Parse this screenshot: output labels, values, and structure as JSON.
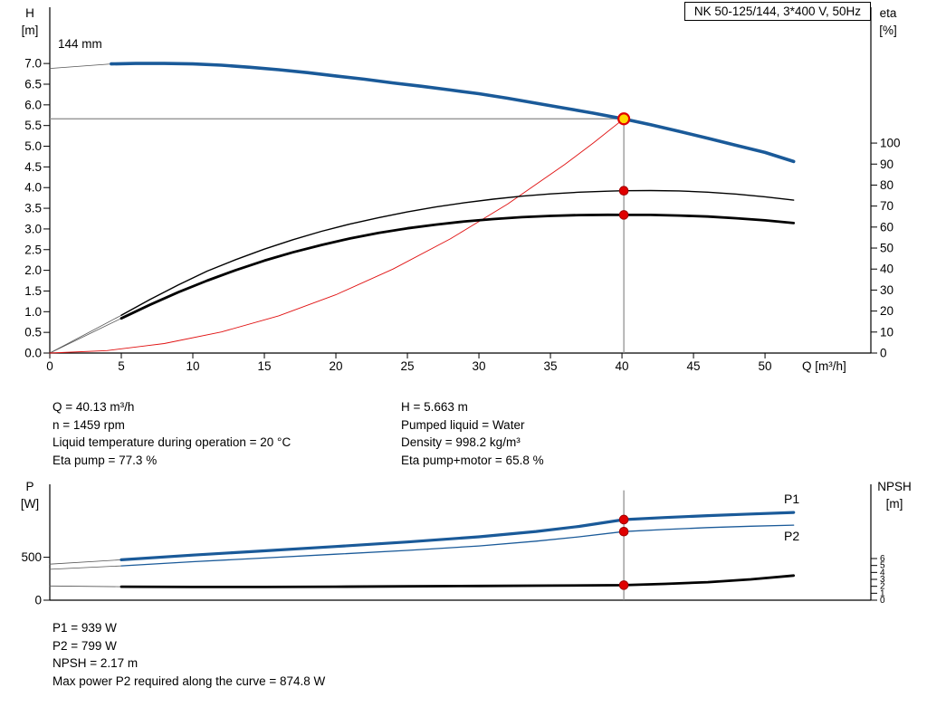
{
  "title_box": "NK 50-125/144, 3*400 V, 50Hz",
  "duty_text": {
    "left": [
      "Q = 40.13 m³/h",
      "n = 1459 rpm",
      "Liquid temperature during operation = 20 °C",
      "Eta pump = 77.3 %"
    ],
    "right": [
      "H = 5.663 m",
      "Pumped liquid = Water",
      "Density = 998.2 kg/m³",
      "Eta pump+motor = 65.8 %"
    ]
  },
  "power_text": [
    "P1 = 939 W",
    "P2 = 799 W",
    "NPSH = 2.17 m",
    "Max power P2 required along the curve = 874.8 W"
  ],
  "colors": {
    "curve_blue": "#1a5a99",
    "curve_black": "#000000",
    "system_red": "#e01010",
    "marker_red": "#e00000",
    "duty_yellow": "#ffd700",
    "ref_gray": "#8a8a8a",
    "thin_gray": "#555555"
  },
  "chart_data": [
    {
      "type": "line",
      "title": "NK 50-125/144, 3*400 V, 50Hz",
      "annotation": "144 mm",
      "x_axis": {
        "label": "Q [m³/h]",
        "min": 0,
        "max": 57.4,
        "ticks": [
          "0",
          "5",
          "10",
          "15",
          "20",
          "25",
          "30",
          "35",
          "40",
          "45",
          "50"
        ]
      },
      "y_left": {
        "label": [
          "H",
          "[m]"
        ],
        "min": 0,
        "max": 8.36,
        "ticks": [
          "0.0",
          "0.5",
          "1.0",
          "1.5",
          "2.0",
          "2.5",
          "3.0",
          "3.5",
          "4.0",
          "4.5",
          "5.0",
          "5.5",
          "6.0",
          "6.5",
          "7.0"
        ]
      },
      "y_right": {
        "label": [
          "eta",
          "[%]"
        ],
        "min": 0,
        "max": 164.7,
        "ticks": [
          "0",
          "10",
          "20",
          "30",
          "40",
          "50",
          "60",
          "70",
          "80",
          "90",
          "100"
        ]
      },
      "ref_lines": [
        {
          "name": "head-ref-line",
          "type": "h",
          "axis": "left",
          "v": 5.663,
          "from": 0,
          "to": 40.13
        },
        {
          "name": "flow-ref-line",
          "type": "v",
          "axis": "left",
          "q": 40.13,
          "from": 0,
          "to": 5.663
        }
      ],
      "series": [
        {
          "name": "h-curve-extension",
          "axis": "left",
          "color": "#555555",
          "width": 0.8,
          "points": [
            [
              0,
              6.88
            ],
            [
              4.3,
              6.99
            ]
          ]
        },
        {
          "name": "eta-pump-extension",
          "axis": "right",
          "color": "#555555",
          "width": 0.8,
          "points": [
            [
              0,
              0
            ],
            [
              5,
              18
            ]
          ]
        },
        {
          "name": "eta-motor-extension",
          "axis": "right",
          "color": "#555555",
          "width": 0.8,
          "points": [
            [
              0,
              0
            ],
            [
              5,
              16.5
            ]
          ]
        },
        {
          "name": "system-curve",
          "axis": "left",
          "color": "#e01010",
          "width": 0.9,
          "points": [
            [
              0,
              0
            ],
            [
              4,
              0.06
            ],
            [
              8,
              0.23
            ],
            [
              12,
              0.51
            ],
            [
              16,
              0.9
            ],
            [
              20,
              1.41
            ],
            [
              24,
              2.03
            ],
            [
              28,
              2.76
            ],
            [
              32,
              3.6
            ],
            [
              36,
              4.56
            ],
            [
              38,
              5.08
            ],
            [
              40.13,
              5.663
            ]
          ]
        },
        {
          "name": "eta-pump-curve",
          "axis": "right",
          "color": "#000000",
          "width": 1.4,
          "points": [
            [
              5,
              18
            ],
            [
              7,
              25.5
            ],
            [
              9,
              32.5
            ],
            [
              11,
              39
            ],
            [
              13,
              44.5
            ],
            [
              15,
              49.5
            ],
            [
              17,
              54
            ],
            [
              19,
              58
            ],
            [
              21,
              61.5
            ],
            [
              23,
              64.5
            ],
            [
              25,
              67.2
            ],
            [
              27,
              69.6
            ],
            [
              29,
              71.6
            ],
            [
              31,
              73.3
            ],
            [
              33,
              74.7
            ],
            [
              35,
              75.8
            ],
            [
              37,
              76.6
            ],
            [
              39,
              77.1
            ],
            [
              40.13,
              77.3
            ],
            [
              42,
              77.4
            ],
            [
              44,
              77.2
            ],
            [
              46,
              76.6
            ],
            [
              48,
              75.7
            ],
            [
              50,
              74.4
            ],
            [
              52,
              72.8
            ]
          ]
        },
        {
          "name": "eta-pump-motor-curve",
          "axis": "right",
          "color": "#000000",
          "width": 2.8,
          "points": [
            [
              5,
              16.5
            ],
            [
              7,
              23
            ],
            [
              9,
              29
            ],
            [
              11,
              34.5
            ],
            [
              13,
              39.5
            ],
            [
              15,
              44
            ],
            [
              17,
              48
            ],
            [
              19,
              51.5
            ],
            [
              21,
              54.6
            ],
            [
              23,
              57.2
            ],
            [
              25,
              59.4
            ],
            [
              27,
              61.2
            ],
            [
              29,
              62.7
            ],
            [
              31,
              63.8
            ],
            [
              33,
              64.7
            ],
            [
              35,
              65.3
            ],
            [
              37,
              65.7
            ],
            [
              39,
              65.85
            ],
            [
              40.13,
              65.8
            ],
            [
              42,
              65.8
            ],
            [
              44,
              65.5
            ],
            [
              46,
              65
            ],
            [
              48,
              64.2
            ],
            [
              50,
              63.2
            ],
            [
              52,
              61.9
            ]
          ]
        },
        {
          "name": "h-curve",
          "axis": "left",
          "color": "#1a5a99",
          "width": 3.6,
          "points": [
            [
              4.3,
              6.99
            ],
            [
              6,
              7.0
            ],
            [
              8,
              7.0
            ],
            [
              10,
              6.99
            ],
            [
              12,
              6.96
            ],
            [
              14,
              6.91
            ],
            [
              16,
              6.85
            ],
            [
              18,
              6.78
            ],
            [
              20,
              6.7
            ],
            [
              22,
              6.62
            ],
            [
              24,
              6.53
            ],
            [
              26,
              6.45
            ],
            [
              28,
              6.36
            ],
            [
              30,
              6.27
            ],
            [
              32,
              6.16
            ],
            [
              34,
              6.04
            ],
            [
              36,
              5.92
            ],
            [
              38,
              5.8
            ],
            [
              40.13,
              5.66
            ],
            [
              42,
              5.52
            ],
            [
              44,
              5.36
            ],
            [
              46,
              5.19
            ],
            [
              48,
              5.02
            ],
            [
              50,
              4.85
            ],
            [
              52,
              4.63
            ]
          ]
        }
      ],
      "markers": [
        {
          "name": "eta-pump-point",
          "axis": "right",
          "q": 40.13,
          "v": 77.3,
          "r": 4.8,
          "fill": "#e00000",
          "stroke": "#a00000",
          "sw": 1
        },
        {
          "name": "eta-motor-point",
          "axis": "right",
          "q": 40.13,
          "v": 65.8,
          "r": 4.8,
          "fill": "#e00000",
          "stroke": "#a00000",
          "sw": 1
        },
        {
          "name": "duty-point",
          "axis": "left",
          "q": 40.13,
          "v": 5.663,
          "r": 6,
          "fill": "#ffd700",
          "stroke": "#e00000",
          "sw": 2.2
        }
      ],
      "labels": []
    },
    {
      "type": "line",
      "x_axis": {
        "label": "",
        "min": 0,
        "max": 57.4,
        "ticks": []
      },
      "y_left": {
        "label": [
          "P",
          "[W]"
        ],
        "min": 0,
        "max": 1350,
        "ticks": [
          "0",
          "500"
        ]
      },
      "y_right": {
        "label": [
          "NPSH",
          "[m]"
        ],
        "min": 0,
        "max": 16.7,
        "ticks": [
          "0",
          "1",
          "2",
          "3",
          "4",
          "5",
          "6"
        ]
      },
      "ref_lines": [
        {
          "name": "flow-ref-line-power",
          "type": "v",
          "axis": "left",
          "q": 40.13,
          "from": 0,
          "to": 1280
        }
      ],
      "series": [
        {
          "name": "p1-extension",
          "axis": "left",
          "color": "#555555",
          "width": 0.8,
          "points": [
            [
              0,
              420
            ],
            [
              5,
              470
            ]
          ]
        },
        {
          "name": "p2-extension",
          "axis": "left",
          "color": "#555555",
          "width": 0.8,
          "points": [
            [
              0,
              360
            ],
            [
              5,
              400
            ]
          ]
        },
        {
          "name": "npsh-extension",
          "axis": "right",
          "color": "#555555",
          "width": 0.8,
          "points": [
            [
              0,
              2.05
            ],
            [
              5,
              1.95
            ]
          ]
        },
        {
          "name": "p1-curve",
          "axis": "left",
          "color": "#1a5a99",
          "width": 3.2,
          "points": [
            [
              5,
              470
            ],
            [
              10,
              525
            ],
            [
              15,
              575
            ],
            [
              20,
              625
            ],
            [
              25,
              678
            ],
            [
              30,
              738
            ],
            [
              34,
              800
            ],
            [
              37,
              860
            ],
            [
              40.13,
              939
            ],
            [
              43,
              963
            ],
            [
              46,
              985
            ],
            [
              49,
              1004
            ],
            [
              52,
              1022
            ]
          ]
        },
        {
          "name": "p2-curve",
          "axis": "left",
          "color": "#1a5a99",
          "width": 1.3,
          "points": [
            [
              5,
              400
            ],
            [
              10,
              448
            ],
            [
              15,
              492
            ],
            [
              20,
              536
            ],
            [
              25,
              580
            ],
            [
              30,
              632
            ],
            [
              34,
              688
            ],
            [
              37,
              738
            ],
            [
              40.13,
              799
            ],
            [
              43,
              824
            ],
            [
              46,
              846
            ],
            [
              49,
              862
            ],
            [
              52,
              874.8
            ]
          ]
        },
        {
          "name": "npsh-curve",
          "axis": "right",
          "color": "#000000",
          "width": 2.8,
          "points": [
            [
              5,
              1.95
            ],
            [
              10,
              1.9
            ],
            [
              15,
              1.9
            ],
            [
              20,
              1.95
            ],
            [
              25,
              2.0
            ],
            [
              30,
              2.05
            ],
            [
              35,
              2.1
            ],
            [
              40.13,
              2.17
            ],
            [
              43,
              2.35
            ],
            [
              46,
              2.6
            ],
            [
              49,
              3.0
            ],
            [
              52,
              3.55
            ]
          ]
        }
      ],
      "markers": [
        {
          "name": "p1-point",
          "axis": "left",
          "q": 40.13,
          "v": 939,
          "r": 4.8,
          "fill": "#e00000",
          "stroke": "#a00000",
          "sw": 1
        },
        {
          "name": "p2-point",
          "axis": "left",
          "q": 40.13,
          "v": 799,
          "r": 4.8,
          "fill": "#e00000",
          "stroke": "#a00000",
          "sw": 1
        },
        {
          "name": "npsh-point",
          "axis": "right",
          "q": 40.13,
          "v": 2.17,
          "r": 4.8,
          "fill": "#e00000",
          "stroke": "#a00000",
          "sw": 1
        }
      ],
      "labels": [
        {
          "name": "p1-curve-label",
          "text": "P1",
          "color": "#1a5a99",
          "x": 866,
          "y": 556
        },
        {
          "name": "p2-curve-label",
          "text": "P2",
          "color": "#1a5a99",
          "x": 866,
          "y": 597
        }
      ]
    }
  ]
}
